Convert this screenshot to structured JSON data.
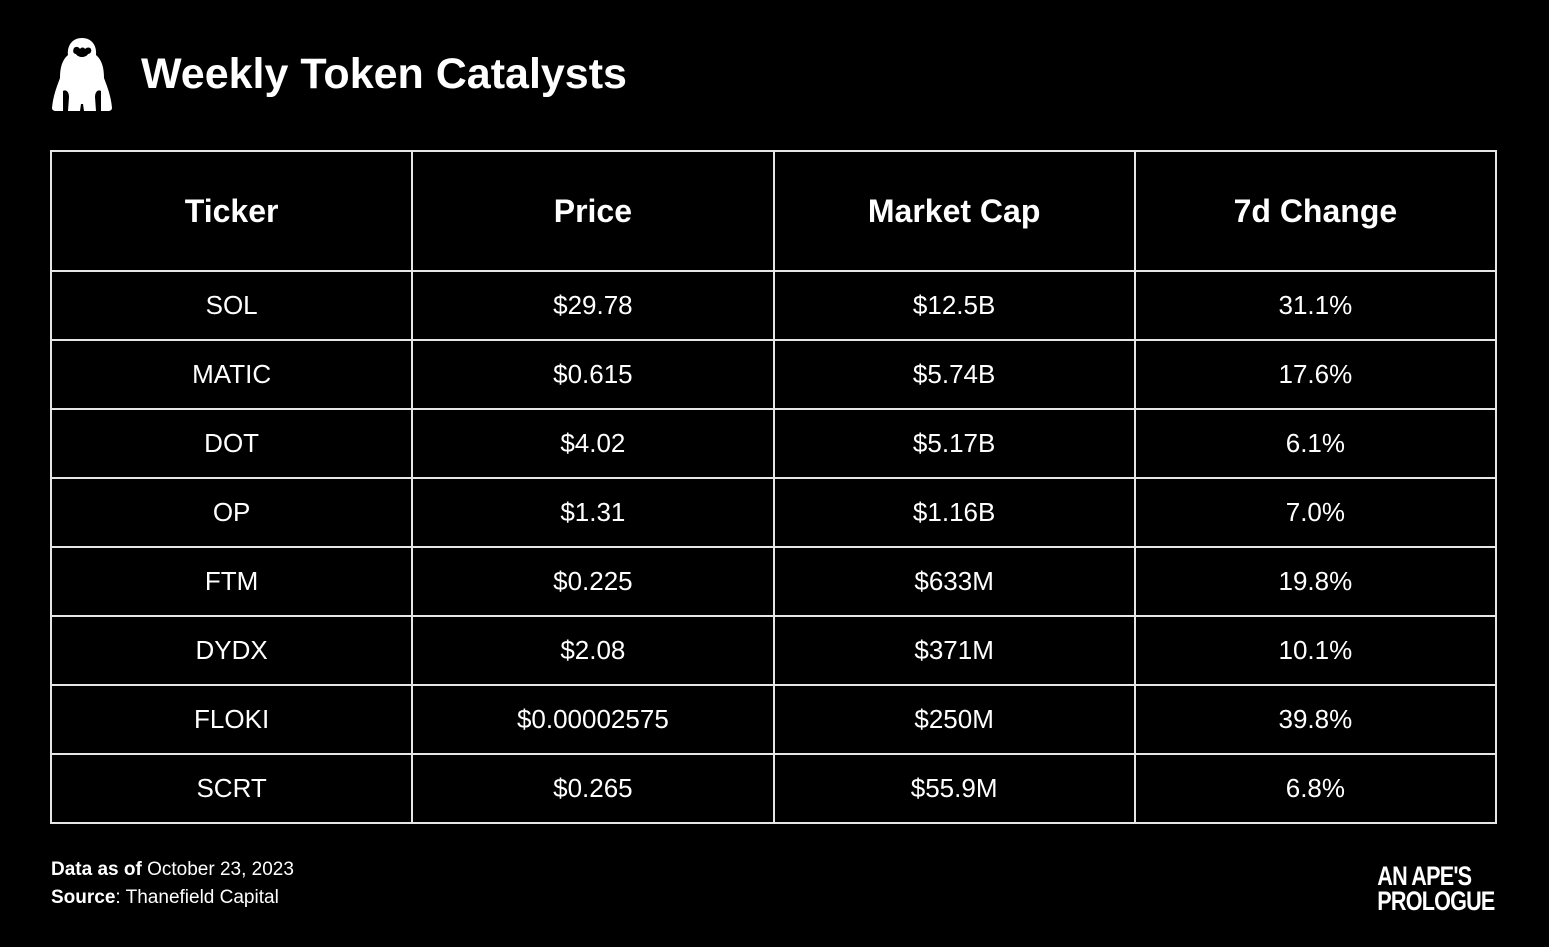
{
  "header": {
    "logo_icon": "ape-silhouette-icon",
    "title": "Weekly Token Catalysts"
  },
  "table": {
    "columns": [
      "Ticker",
      "Price",
      "Market Cap",
      "7d Change"
    ],
    "rows": [
      [
        "SOL",
        "$29.78",
        "$12.5B",
        "31.1%"
      ],
      [
        "MATIC",
        "$0.615",
        "$5.74B",
        "17.6%"
      ],
      [
        "DOT",
        "$4.02",
        "$5.17B",
        "6.1%"
      ],
      [
        "OP",
        "$1.31",
        "$1.16B",
        "7.0%"
      ],
      [
        "FTM",
        "$0.225",
        "$633M",
        "19.8%"
      ],
      [
        "DYDX",
        "$2.08",
        "$371M",
        "10.1%"
      ],
      [
        "FLOKI",
        "$0.00002575",
        "$250M",
        "39.8%"
      ],
      [
        "SCRT",
        "$0.265",
        "$55.9M",
        "6.8%"
      ]
    ]
  },
  "chart_data": {
    "type": "table",
    "title": "Weekly Token Catalysts",
    "columns": [
      "Ticker",
      "Price",
      "Market Cap",
      "7d Change"
    ],
    "rows": [
      [
        "SOL",
        "$29.78",
        "$12.5B",
        "31.1%"
      ],
      [
        "MATIC",
        "$0.615",
        "$5.74B",
        "17.6%"
      ],
      [
        "DOT",
        "$4.02",
        "$5.17B",
        "6.1%"
      ],
      [
        "OP",
        "$1.31",
        "$1.16B",
        "7.0%"
      ],
      [
        "FTM",
        "$0.225",
        "$633M",
        "19.8%"
      ],
      [
        "DYDX",
        "$2.08",
        "$371M",
        "10.1%"
      ],
      [
        "FLOKI",
        "$0.00002575",
        "$250M",
        "39.8%"
      ],
      [
        "SCRT",
        "$0.265",
        "$55.9M",
        "6.8%"
      ]
    ]
  },
  "footer": {
    "date_label": "Data as of",
    "date_value": " October 23, 2023",
    "source_label": "Source",
    "source_value": ": Thanefield Capital"
  },
  "brand": {
    "line1": "AN APE'S",
    "line2": "PROLOGUE"
  },
  "colors": {
    "background": "#000000",
    "text": "#ffffff",
    "grid": "#e6e6e6"
  }
}
